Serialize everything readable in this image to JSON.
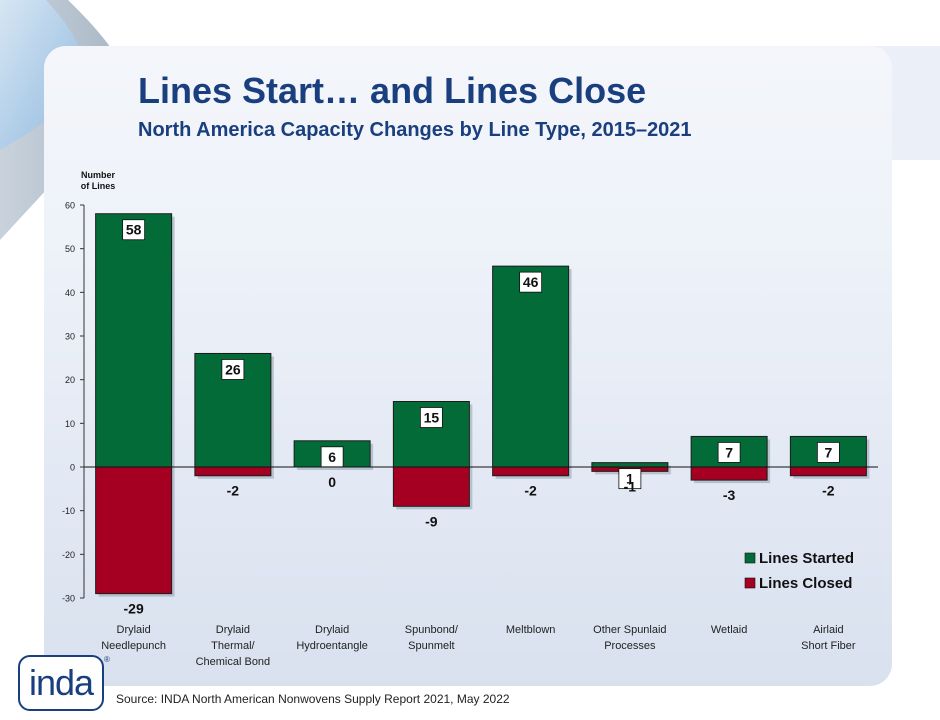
{
  "slide": {
    "title": "Lines Start… and Lines Close",
    "subtitle": "North America Capacity Changes by Line Type, 2015–2021",
    "source": "Source: INDA North American Nonwovens Supply Report 2021, May 2022",
    "logo_text": "inda",
    "logo_mark": "®"
  },
  "chart_data": {
    "type": "bar",
    "stacked": true,
    "ylabel": [
      "Number",
      "of Lines"
    ],
    "ylim": [
      -30,
      60
    ],
    "yticks": [
      60,
      50,
      40,
      30,
      20,
      10,
      0,
      -10,
      -20,
      -30
    ],
    "categories": [
      [
        "Drylaid",
        "Needlepunch"
      ],
      [
        "Drylaid",
        "Thermal/",
        "Chemical Bond"
      ],
      [
        "Drylaid",
        "Hydroentangle"
      ],
      [
        "Spunbond/",
        "Spunmelt"
      ],
      [
        "Meltblown"
      ],
      [
        "Other Spunlaid",
        "Processes"
      ],
      [
        "Wetlaid"
      ],
      [
        "Airlaid",
        "Short Fiber"
      ]
    ],
    "series": [
      {
        "name": "Lines Started",
        "color": "#036b38",
        "values": [
          58,
          26,
          6,
          15,
          46,
          1,
          7,
          7
        ]
      },
      {
        "name": "Lines Closed",
        "color": "#a50021",
        "values": [
          -29,
          -2,
          0,
          -9,
          -2,
          -1,
          -3,
          -2
        ]
      }
    ],
    "legend_position": "bottom-right",
    "grid": false
  }
}
